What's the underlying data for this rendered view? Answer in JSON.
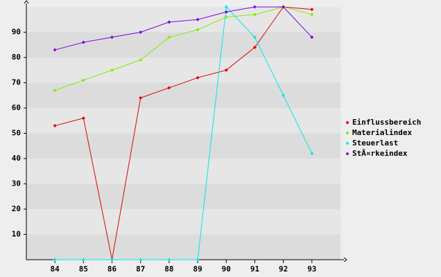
{
  "chart_data": {
    "type": "line",
    "x": [
      84,
      85,
      86,
      87,
      88,
      89,
      90,
      91,
      92,
      93
    ],
    "xlim": [
      83,
      94
    ],
    "xticks": [
      84,
      85,
      86,
      87,
      88,
      89,
      90,
      91,
      92,
      93
    ],
    "ylim": [
      0,
      100
    ],
    "yticks": [
      10,
      20,
      30,
      40,
      50,
      60,
      70,
      80,
      90
    ],
    "grid": true,
    "legend": "right",
    "series": [
      {
        "name": "Einflussbereich",
        "color": "#e00000",
        "values": [
          53,
          56,
          0,
          64,
          68,
          72,
          75,
          84,
          100,
          99
        ]
      },
      {
        "name": "Materialindex",
        "color": "#80ee00",
        "values": [
          67,
          71,
          75,
          79,
          88,
          91,
          96,
          97,
          100,
          97
        ]
      },
      {
        "name": "Steuerlast",
        "color": "#00e8e8",
        "values": [
          0,
          0,
          0,
          0,
          0,
          0,
          100,
          88,
          65,
          42
        ]
      },
      {
        "name": "StÃ¤rkeindex",
        "color": "#8000e0",
        "values": [
          83,
          86,
          88,
          90,
          94,
          95,
          98,
          100,
          100,
          88
        ]
      }
    ]
  }
}
